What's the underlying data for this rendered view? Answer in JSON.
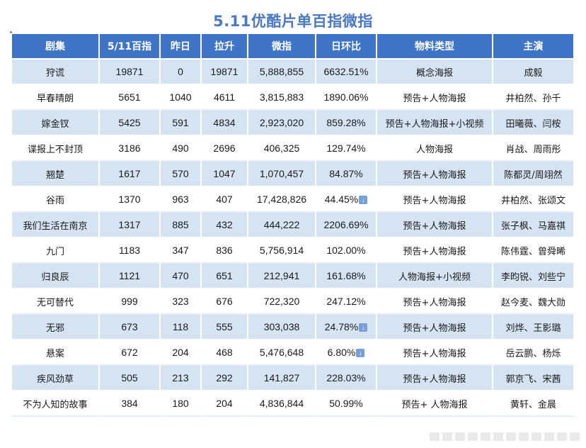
{
  "title": "5.11优酷片单百指微指",
  "headers": [
    "剧集",
    "5/11百指",
    "昨日",
    "拉升",
    "微指",
    "日环比",
    "物料类型",
    "主演"
  ],
  "rows": [
    {
      "show": "狩谎",
      "idx": "19871",
      "yest": "0",
      "rise": "19871",
      "wei": "5,888,855",
      "dod": "6632.51%",
      "down": false,
      "mat": "概念海报",
      "cast": "成毅"
    },
    {
      "show": "早春晴朗",
      "idx": "5651",
      "yest": "1040",
      "rise": "4611",
      "wei": "3,815,883",
      "dod": "1890.06%",
      "down": false,
      "mat": "预告+人物海报",
      "cast": "井柏然、孙千"
    },
    {
      "show": "嫁金钗",
      "idx": "5425",
      "yest": "591",
      "rise": "4834",
      "wei": "2,923,020",
      "dod": "859.28%",
      "down": false,
      "mat": "预告+人物海报+小视频",
      "cast": "田曦薇、闫桉"
    },
    {
      "show": "谍报上不封顶",
      "idx": "3186",
      "yest": "490",
      "rise": "2696",
      "wei": "406,325",
      "dod": "129.74%",
      "down": false,
      "mat": "人物海报",
      "cast": "肖战、周雨彤"
    },
    {
      "show": "翘楚",
      "idx": "1617",
      "yest": "570",
      "rise": "1047",
      "wei": "1,070,457",
      "dod": "84.87%",
      "down": false,
      "mat": "预告+人物海报",
      "cast": "陈都灵/周翊然"
    },
    {
      "show": "谷雨",
      "idx": "1370",
      "yest": "963",
      "rise": "407",
      "wei": "17,428,826",
      "dod": "44.45%",
      "down": true,
      "mat": "预告+人物海报",
      "cast": "井柏然、张颂文"
    },
    {
      "show": "我们生活在南京",
      "idx": "1317",
      "yest": "885",
      "rise": "432",
      "wei": "444,222",
      "dod": "2206.69%",
      "down": false,
      "mat": "预告+人物海报",
      "cast": "张子枫、马嘉祺"
    },
    {
      "show": "九门",
      "idx": "1183",
      "yest": "347",
      "rise": "836",
      "wei": "5,756,914",
      "dod": "102.00%",
      "down": false,
      "mat": "预告+人物海报",
      "cast": "陈伟霆、曾舜晞"
    },
    {
      "show": "归良辰",
      "idx": "1121",
      "yest": "470",
      "rise": "651",
      "wei": "212,941",
      "dod": "161.68%",
      "down": false,
      "mat": "人物海报+小视频",
      "cast": "李昀锐、刘些宁"
    },
    {
      "show": "无可替代",
      "idx": "999",
      "yest": "323",
      "rise": "676",
      "wei": "722,320",
      "dod": "247.12%",
      "down": false,
      "mat": "预告+人物海报",
      "cast": "赵今麦、魏大勋"
    },
    {
      "show": "无邪",
      "idx": "673",
      "yest": "118",
      "rise": "555",
      "wei": "303,038",
      "dod": "24.78%",
      "down": true,
      "mat": "预告+人物海报",
      "cast": "刘烨、王影璐"
    },
    {
      "show": "悬案",
      "idx": "672",
      "yest": "204",
      "rise": "468",
      "wei": "5,476,648",
      "dod": "6.80%",
      "down": true,
      "mat": "预告+人物海报",
      "cast": "岳云鹏、杨烁"
    },
    {
      "show": "疾风劲草",
      "idx": "505",
      "yest": "213",
      "rise": "292",
      "wei": "141,827",
      "dod": "228.03%",
      "down": false,
      "mat": "预告+人物海报",
      "cast": "郭京飞、宋茜"
    },
    {
      "show": "不为人知的故事",
      "idx": "384",
      "yest": "180",
      "rise": "204",
      "wei": "4,836,844",
      "dod": "50.99%",
      "down": false,
      "mat": "预告+ 人物海报",
      "cast": "黄轩、金晨"
    }
  ]
}
